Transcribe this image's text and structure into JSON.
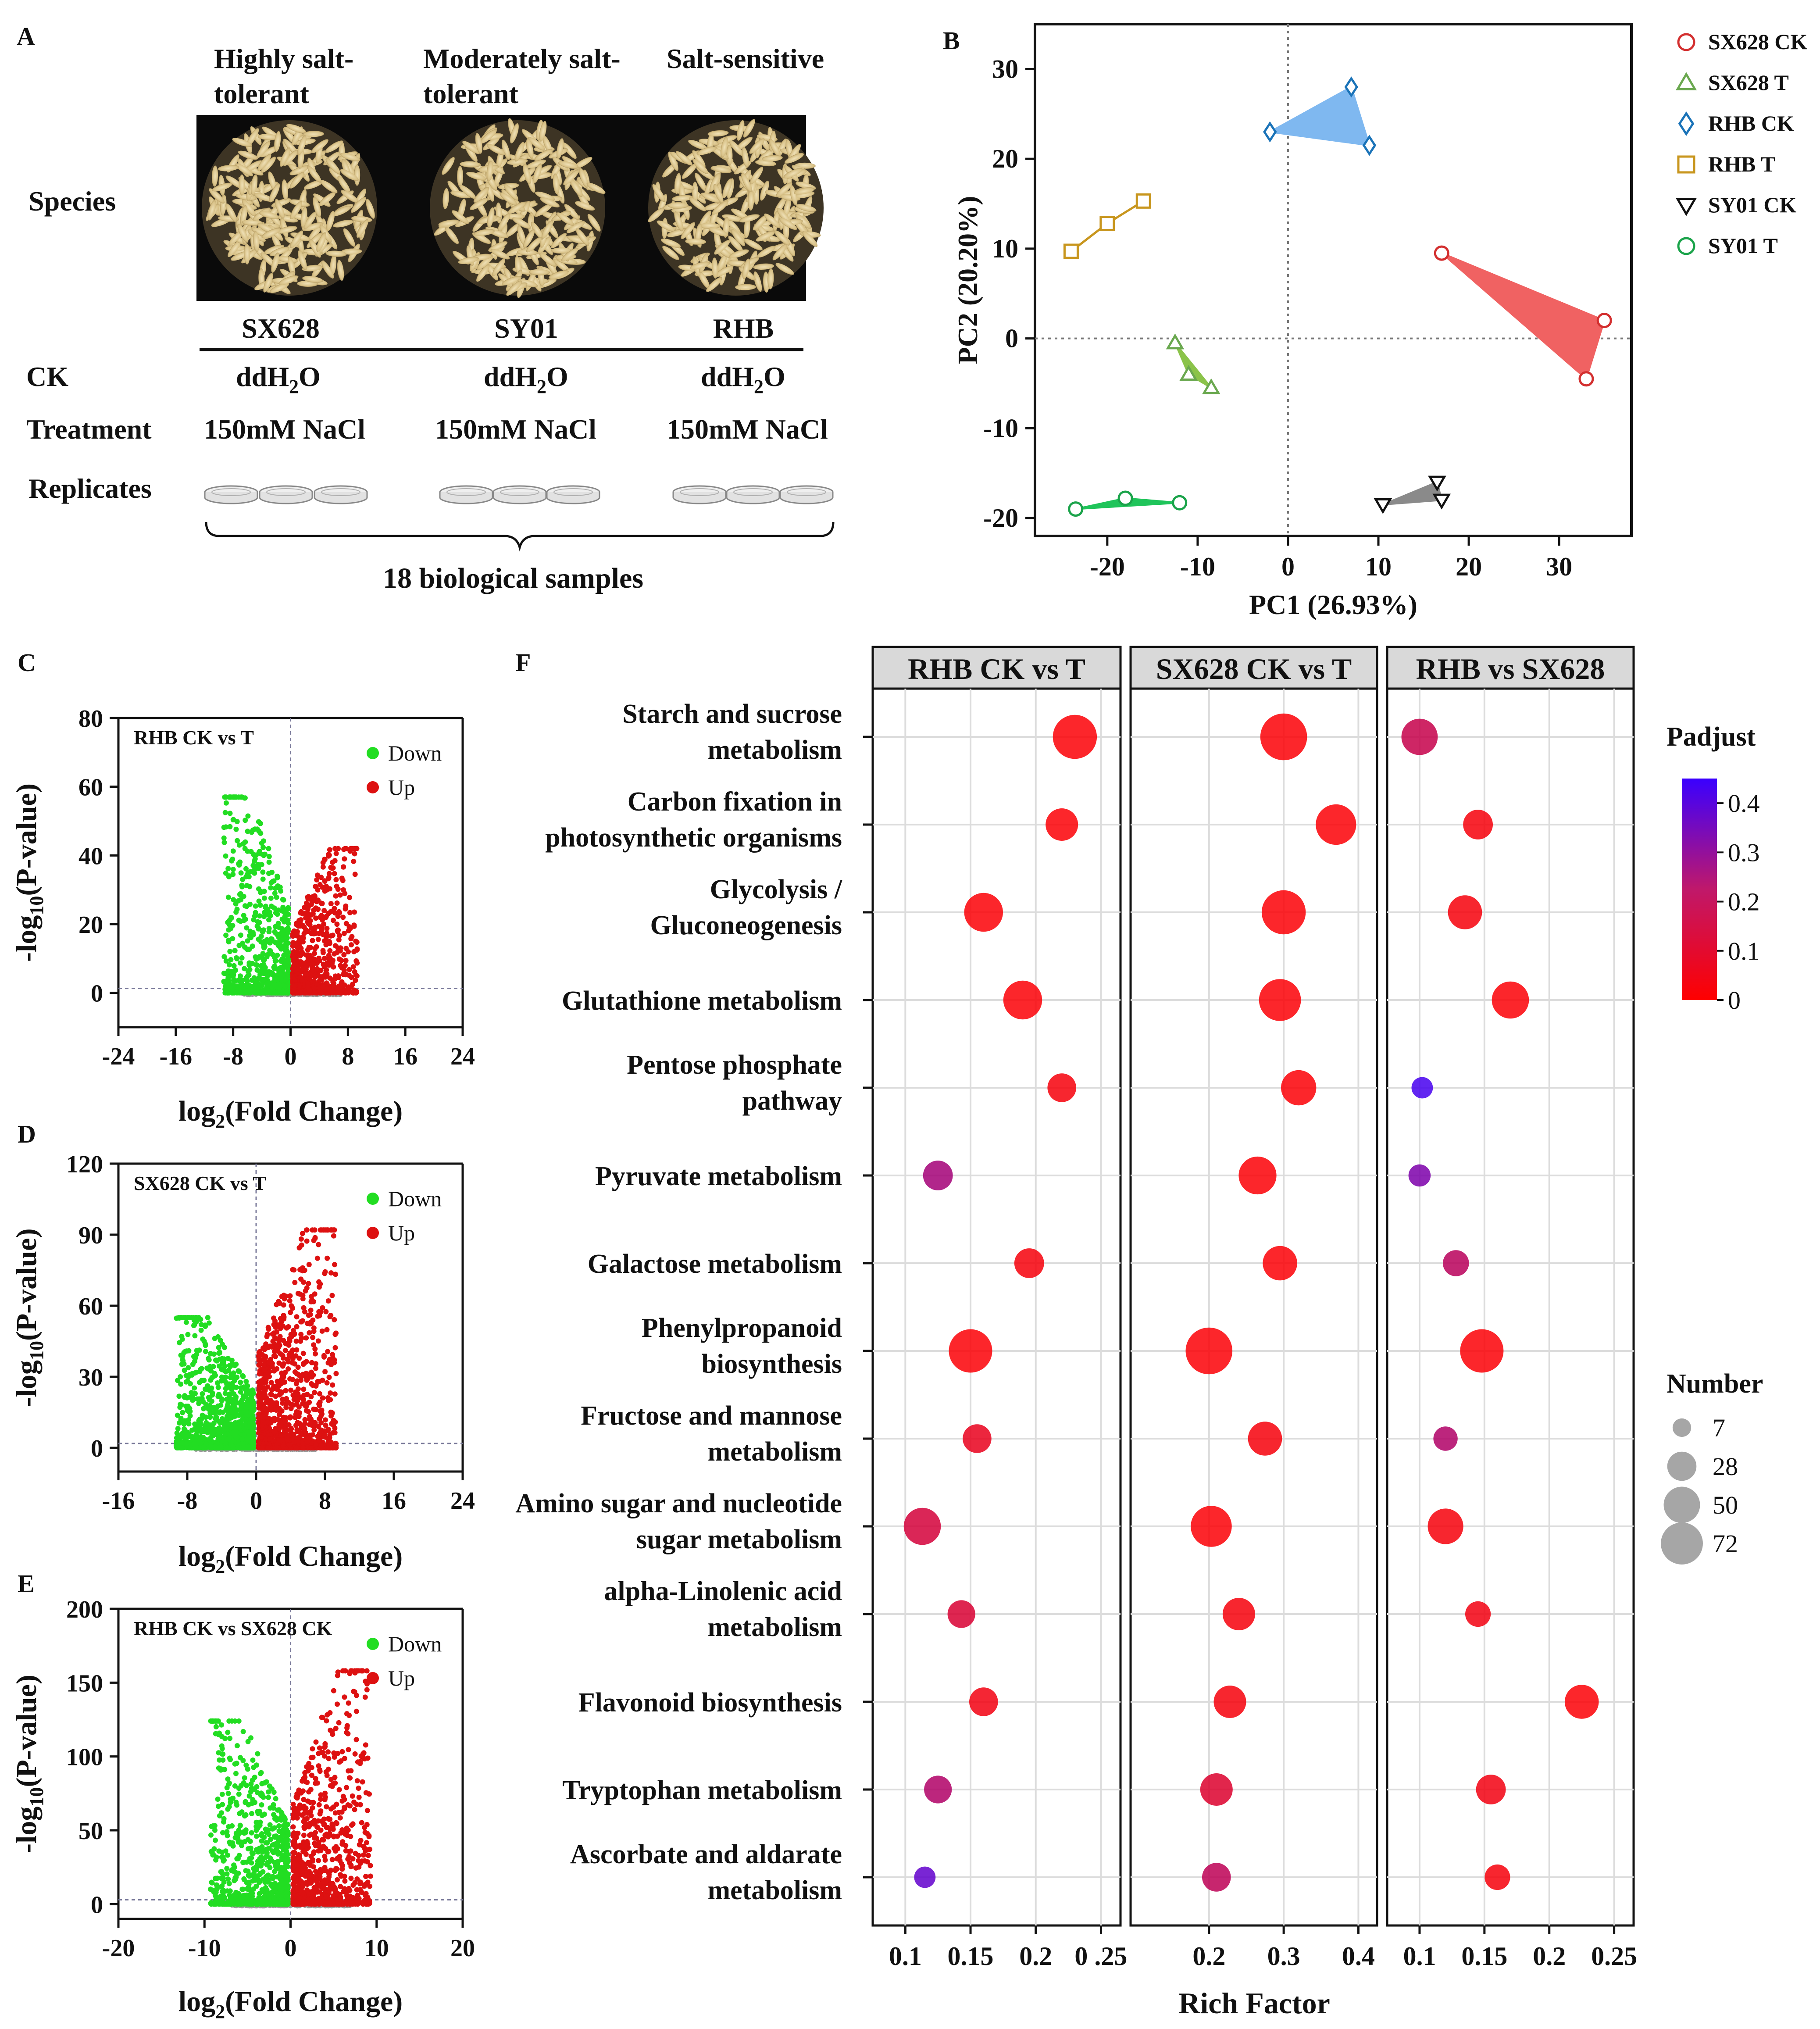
{
  "panelA": {
    "letter": "A",
    "col_titles": [
      [
        "Highly salt-",
        "tolerant"
      ],
      [
        "Moderately salt-",
        "tolerant"
      ],
      [
        "Salt-sensitive"
      ]
    ],
    "row_species": "Species",
    "names": [
      "SX628",
      "SY01",
      "RHB"
    ],
    "row_ck": "CK",
    "ck_value": "ddH",
    "ck_sub": "2",
    "ck_tail": "O",
    "row_treatment": "Treatment",
    "treatment_value": "150mM NaCl",
    "row_replicates": "Replicates",
    "total": "18 biological samples"
  },
  "chart_data": [
    {
      "id": "B",
      "type": "scatter",
      "xlabel": "PC1 (26.93%)",
      "ylabel": "PC2 (20.20%)",
      "xlim": [
        -28,
        38
      ],
      "ylim": [
        -22,
        35
      ],
      "xticks": [
        -20,
        -10,
        0,
        10,
        20,
        30
      ],
      "yticks": [
        -20,
        -10,
        0,
        10,
        20,
        30
      ],
      "series": [
        {
          "name": "SX628 CK",
          "marker": "circle",
          "color": "#d32f2f",
          "fill": "#f06262",
          "style": "hull",
          "points": [
            [
              17,
              9.5
            ],
            [
              35,
              2
            ],
            [
              33,
              -4.5
            ]
          ]
        },
        {
          "name": "SX628 T",
          "marker": "triangle",
          "color": "#6aa84f",
          "fill": "#8bc34a",
          "style": "hull",
          "points": [
            [
              -12.5,
              -0.5
            ],
            [
              -11,
              -4
            ],
            [
              -8.5,
              -5.5
            ]
          ]
        },
        {
          "name": "RHB CK",
          "marker": "diamond",
          "color": "#1a73b8",
          "fill": "#7fb8f0",
          "style": "hull",
          "points": [
            [
              -2,
              23
            ],
            [
              7,
              28
            ],
            [
              9,
              21.5
            ]
          ]
        },
        {
          "name": "RHB T",
          "marker": "square",
          "color": "#c8961e",
          "fill": "none",
          "style": "line",
          "points": [
            [
              -24,
              9.7
            ],
            [
              -20,
              12.8
            ],
            [
              -16,
              15.3
            ]
          ]
        },
        {
          "name": "SY01 CK",
          "marker": "triangle-down",
          "color": "#111111",
          "fill": "#8a8a8a",
          "style": "hull",
          "points": [
            [
              10.5,
              -18.5
            ],
            [
              16.5,
              -16
            ],
            [
              17,
              -18
            ]
          ]
        },
        {
          "name": "SY01 T",
          "marker": "circle",
          "color": "#1aa34a",
          "fill": "#1fc45a",
          "style": "hull",
          "points": [
            [
              -23.5,
              -19
            ],
            [
              -18,
              -17.8
            ],
            [
              -12,
              -18.3
            ]
          ]
        }
      ]
    },
    {
      "id": "C",
      "type": "scatter",
      "title": "RHB CK vs T",
      "xlabel_base": "log",
      "xlabel_sub": "2",
      "xlabel_tail": "(Fold Change)",
      "ylabel_pre": "-log",
      "ylabel_sub": "10",
      "ylabel_tail": "(P-value)",
      "xlim": [
        -24,
        24
      ],
      "ylim": [
        -10,
        80
      ],
      "xticks": [
        -24,
        -16,
        -8,
        0,
        8,
        16,
        24
      ],
      "yticks": [
        0,
        20,
        40,
        60,
        80
      ],
      "legend": [
        "Down",
        "Up"
      ],
      "seed": 11,
      "peaks": {
        "down_max": 57,
        "up_max": 42
      },
      "n_points": 1500
    },
    {
      "id": "D",
      "type": "scatter",
      "title": "SX628 CK vs T",
      "xlabel_base": "log",
      "xlabel_sub": "2",
      "xlabel_tail": "(Fold Change)",
      "ylabel_pre": "-log",
      "ylabel_sub": "10",
      "ylabel_tail": "(P-value)",
      "xlim": [
        -16,
        24
      ],
      "ylim": [
        -10,
        120
      ],
      "xticks": [
        -16,
        -8,
        0,
        8,
        16,
        24
      ],
      "yticks": [
        0,
        30,
        60,
        90,
        120
      ],
      "legend": [
        "Down",
        "Up"
      ],
      "seed": 23,
      "peaks": {
        "down_max": 55,
        "up_max": 92
      },
      "n_points": 2200
    },
    {
      "id": "E",
      "type": "scatter",
      "title": "RHB CK vs SX628 CK",
      "xlabel_base": "log",
      "xlabel_sub": "2",
      "xlabel_tail": "(Fold Change)",
      "ylabel_pre": "-log",
      "ylabel_sub": "10",
      "ylabel_tail": "(P-value)",
      "xlim": [
        -20,
        20
      ],
      "ylim": [
        -10,
        200
      ],
      "xticks": [
        -20,
        -10,
        0,
        10,
        20
      ],
      "yticks": [
        0,
        50,
        100,
        150,
        200
      ],
      "legend": [
        "Down",
        "Up"
      ],
      "seed": 37,
      "peaks": {
        "down_max": 124,
        "up_max": 158
      },
      "n_points": 1800
    },
    {
      "id": "F",
      "type": "scatter",
      "xlabel": "Rich Factor",
      "facets": [
        {
          "title": "RHB CK vs T",
          "xlim": [
            0.075,
            0.265
          ],
          "xticks": [
            0.1,
            0.15,
            0.2,
            0.25
          ],
          "xticklabels": [
            "0.1",
            "0.15",
            "0.2",
            "0 .25"
          ]
        },
        {
          "title": "SX628 CK vs T",
          "xlim": [
            0.095,
            0.425
          ],
          "xticks": [
            0.2,
            0.3,
            0.4
          ],
          "xticklabels": [
            "0.2",
            "0.3",
            "0.4"
          ]
        },
        {
          "title": "RHB vs SX628",
          "xlim": [
            0.075,
            0.265
          ],
          "xticks": [
            0.1,
            0.15,
            0.2,
            0.25
          ],
          "xticklabels": [
            "0.1",
            "0.15",
            "0.2",
            "0.25"
          ]
        }
      ],
      "pathways": [
        [
          "Starch and sucrose",
          "metabolism"
        ],
        [
          "Carbon fixation in",
          "photosynthetic organisms"
        ],
        [
          "Glycolysis /",
          "Gluconeogenesis"
        ],
        [
          "Glutathione metabolism"
        ],
        [
          "Pentose phosphate",
          "pathway"
        ],
        [
          "Pyruvate metabolism"
        ],
        [
          "Galactose metabolism"
        ],
        [
          "Phenylpropanoid",
          "biosynthesis"
        ],
        [
          "Fructose and mannose",
          "metabolism"
        ],
        [
          "Amino sugar and nucleotide",
          "sugar metabolism"
        ],
        [
          "alpha-Linolenic acid",
          "metabolism"
        ],
        [
          "Flavonoid biosynthesis"
        ],
        [
          "Tryptophan metabolism"
        ],
        [
          "Ascorbate and aldarate",
          "metabolism"
        ]
      ],
      "points": [
        [
          [
            0.23,
            62,
            0.01
          ],
          [
            0.3,
            72,
            0.01
          ],
          [
            0.1,
            38,
            0.13
          ]
        ],
        [
          [
            0.22,
            28,
            0.01
          ],
          [
            0.37,
            50,
            0.01
          ],
          [
            0.145,
            22,
            0.02
          ]
        ],
        [
          [
            0.16,
            45,
            0.01
          ],
          [
            0.3,
            62,
            0.01
          ],
          [
            0.135,
            32,
            0.02
          ]
        ],
        [
          [
            0.19,
            45,
            0.01
          ],
          [
            0.295,
            55,
            0.01
          ],
          [
            0.17,
            40,
            0.01
          ]
        ],
        [
          [
            0.22,
            20,
            0.02
          ],
          [
            0.32,
            35,
            0.01
          ],
          [
            0.102,
            8,
            0.42
          ]
        ],
        [
          [
            0.125,
            22,
            0.21
          ],
          [
            0.265,
            42,
            0.01
          ],
          [
            0.1,
            9,
            0.3
          ]
        ],
        [
          [
            0.195,
            22,
            0.02
          ],
          [
            0.295,
            33,
            0.01
          ],
          [
            0.128,
            15,
            0.16
          ]
        ],
        [
          [
            0.15,
            60,
            0.01
          ],
          [
            0.2,
            72,
            0.01
          ],
          [
            0.148,
            60,
            0.01
          ]
        ],
        [
          [
            0.155,
            20,
            0.05
          ],
          [
            0.275,
            32,
            0.02
          ],
          [
            0.12,
            12,
            0.18
          ]
        ],
        [
          [
            0.113,
            40,
            0.1
          ],
          [
            0.203,
            52,
            0.01
          ],
          [
            0.12,
            36,
            0.02
          ]
        ],
        [
          [
            0.143,
            18,
            0.09
          ],
          [
            0.24,
            28,
            0.02
          ],
          [
            0.145,
            14,
            0.03
          ]
        ],
        [
          [
            0.16,
            20,
            0.03
          ],
          [
            0.228,
            28,
            0.02
          ],
          [
            0.225,
            32,
            0.01
          ]
        ],
        [
          [
            0.125,
            18,
            0.18
          ],
          [
            0.21,
            28,
            0.08
          ],
          [
            0.155,
            22,
            0.03
          ]
        ],
        [
          [
            0.115,
            8,
            0.36
          ],
          [
            0.21,
            20,
            0.15
          ],
          [
            0.16,
            14,
            0.02
          ]
        ]
      ],
      "colorbar": {
        "title": "Padjust",
        "min": 0,
        "max": 0.45,
        "ticks": [
          0,
          0.1,
          0.2,
          0.3,
          0.4
        ],
        "low_color": "#ff0000",
        "high_color": "#3a00ff"
      },
      "size_legend": {
        "title": "Number",
        "values": [
          7,
          28,
          50,
          72
        ]
      }
    }
  ],
  "letters": {
    "B": "B",
    "C": "C",
    "D": "D",
    "E": "E",
    "F": "F"
  },
  "colors": {
    "down": "#22dd22",
    "up": "#dd1111",
    "ns": "#999999",
    "hull_stroke": "#111111"
  }
}
